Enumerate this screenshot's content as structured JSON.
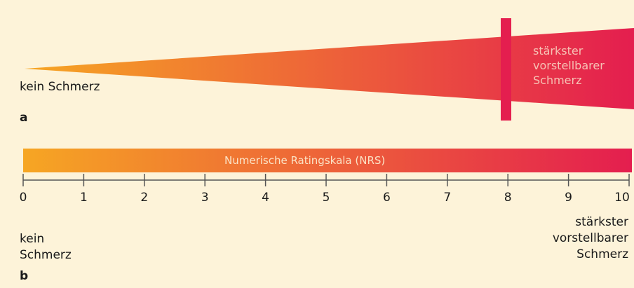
{
  "colors": {
    "start": "#f6a623",
    "end": "#e41e4f",
    "marker": "#e41e4f",
    "background": "#fdf3d9"
  },
  "panel_a": {
    "letter": "a",
    "left_label": "kein Schmerz",
    "right_label": [
      "stärkster",
      "vorstellbarer",
      "Schmerz"
    ],
    "marker_value": 8
  },
  "panel_b": {
    "letter": "b",
    "scale_caption": "Numerische Ratingskala (NRS)",
    "ticks": [
      "0",
      "1",
      "2",
      "3",
      "4",
      "5",
      "6",
      "7",
      "8",
      "9",
      "10"
    ],
    "left_label": [
      "kein",
      "Schmerz"
    ],
    "right_label": [
      "stärkster",
      "vorstellbarer",
      "Schmerz"
    ]
  }
}
